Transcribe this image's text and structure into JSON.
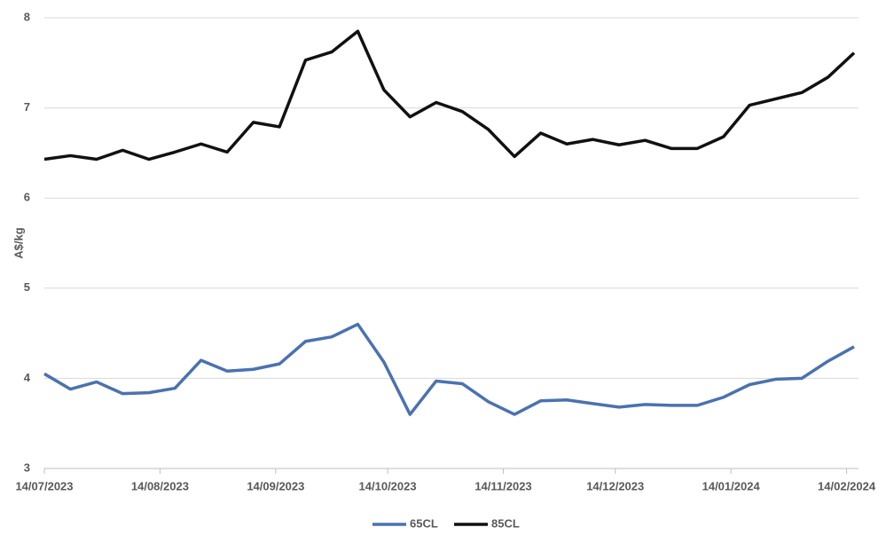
{
  "chart_data": {
    "type": "line",
    "y_label": "A$/kg",
    "x": [
      "14/07/2023",
      "21/07/2023",
      "28/07/2023",
      "04/08/2023",
      "11/08/2023",
      "18/08/2023",
      "25/08/2023",
      "01/09/2023",
      "08/09/2023",
      "15/09/2023",
      "22/09/2023",
      "29/09/2023",
      "06/10/2023",
      "13/10/2023",
      "20/10/2023",
      "27/10/2023",
      "03/11/2023",
      "10/11/2023",
      "17/11/2023",
      "24/11/2023",
      "01/12/2023",
      "08/12/2023",
      "15/12/2023",
      "22/12/2023",
      "29/12/2023",
      "05/01/2024",
      "12/01/2024",
      "19/01/2024",
      "26/01/2024",
      "02/02/2024",
      "09/02/2024",
      "16/02/2024"
    ],
    "series": [
      {
        "name": "65CL",
        "color": "#4a72b0",
        "values": [
          4.05,
          3.88,
          3.96,
          3.83,
          3.84,
          3.89,
          4.2,
          4.08,
          4.1,
          4.16,
          4.41,
          4.46,
          4.6,
          4.18,
          3.6,
          3.97,
          3.94,
          3.74,
          3.6,
          3.75,
          3.76,
          3.72,
          3.68,
          3.71,
          3.7,
          3.7,
          3.79,
          3.93,
          3.99,
          4.0,
          4.19,
          4.35
        ]
      },
      {
        "name": "85CL",
        "color": "#111111",
        "values": [
          6.43,
          6.47,
          6.43,
          6.53,
          6.43,
          6.51,
          6.6,
          6.51,
          6.84,
          6.79,
          7.53,
          7.62,
          7.85,
          7.2,
          6.9,
          7.06,
          6.96,
          6.76,
          6.46,
          6.72,
          6.6,
          6.65,
          6.59,
          6.64,
          6.55,
          6.55,
          6.68,
          7.03,
          7.1,
          7.17,
          7.34,
          7.61
        ]
      }
    ],
    "xlim": [
      "14/07/2023",
      "16/02/2024"
    ],
    "xticks": [
      "14/07/2023",
      "14/08/2023",
      "14/09/2023",
      "14/10/2023",
      "14/11/2023",
      "14/12/2023",
      "14/01/2024",
      "14/02/2024"
    ],
    "ylim": [
      3,
      8
    ],
    "yticks": [
      3,
      4,
      5,
      6,
      7,
      8
    ],
    "grid": true,
    "legend": "bottom"
  }
}
